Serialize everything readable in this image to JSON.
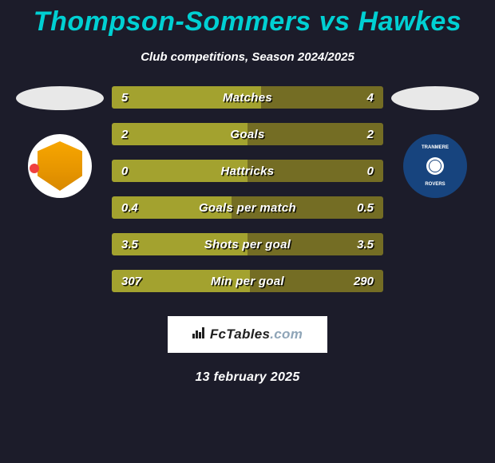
{
  "title": "Thompson-Sommers vs Hawkes",
  "subtitle": "Club competitions, Season 2024/2025",
  "colors": {
    "left": "#a3a22f",
    "right": "#746d24",
    "title": "#00d0d3",
    "bg": "#1c1c2a",
    "club_right_bg": "#17447e"
  },
  "stats": [
    {
      "label": "Matches",
      "left_val": "5",
      "right_val": "4",
      "left_pct": 55,
      "right_pct": 45
    },
    {
      "label": "Goals",
      "left_val": "2",
      "right_val": "2",
      "left_pct": 50,
      "right_pct": 50
    },
    {
      "label": "Hattricks",
      "left_val": "0",
      "right_val": "0",
      "left_pct": 50,
      "right_pct": 50
    },
    {
      "label": "Goals per match",
      "left_val": "0.4",
      "right_val": "0.5",
      "left_pct": 44,
      "right_pct": 56
    },
    {
      "label": "Shots per goal",
      "left_val": "3.5",
      "right_val": "3.5",
      "left_pct": 50,
      "right_pct": 50
    },
    {
      "label": "Min per goal",
      "left_val": "307",
      "right_val": "290",
      "left_pct": 51,
      "right_pct": 49
    }
  ],
  "branding": {
    "site": "FcTables",
    "tld": ".com"
  },
  "date_text": "13 february 2025"
}
